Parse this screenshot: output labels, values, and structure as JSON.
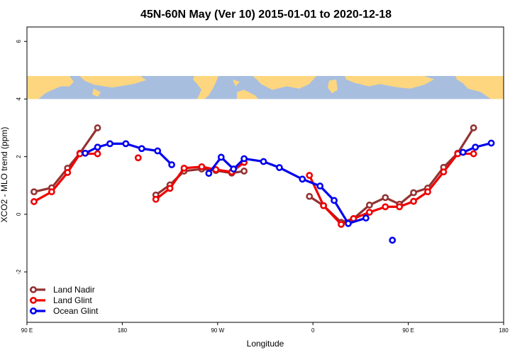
{
  "chart_data": {
    "type": "line",
    "title": "45N-60N May (Ver 10)   2015-01-01 to 2020-12-18",
    "xlabel": "Longitude",
    "ylabel": "XCO2 - MLO trend (ppm)",
    "xlim": [
      -90,
      180
    ],
    "ylim": [
      -3.75,
      6.5
    ],
    "x_ticks": [
      {
        "value": -90,
        "label": "90 E"
      },
      {
        "value": -36,
        "label": "180"
      },
      {
        "value": 18,
        "label": "90 W"
      },
      {
        "value": 72,
        "label": "0"
      },
      {
        "value": 126,
        "label": "90 E"
      },
      {
        "value": 180,
        "label": "180"
      }
    ],
    "y_ticks": [
      {
        "value": -2,
        "label": "-2"
      },
      {
        "value": 0,
        "label": "0"
      },
      {
        "value": 2,
        "label": "2"
      },
      {
        "value": 4,
        "label": "4"
      },
      {
        "value": 6,
        "label": "6"
      }
    ],
    "map_band": {
      "y_range": [
        4.0,
        4.8
      ],
      "ocean_color": "#a8bedf",
      "land_color": "#fdd67f"
    },
    "legend_position": "bottom-left",
    "series": [
      {
        "name": "Land Nadir",
        "color": "#943232",
        "segments": [
          [
            [
              -86,
              0.78
            ],
            [
              -76,
              0.92
            ],
            [
              -67,
              1.6
            ],
            [
              -60,
              2.12
            ],
            [
              -50,
              3.0
            ]
          ],
          [
            [
              -17,
              0.67
            ],
            [
              -9,
              1.02
            ],
            [
              -1,
              1.5
            ],
            [
              9,
              1.57
            ],
            [
              17,
              1.52
            ],
            [
              26,
              1.43
            ],
            [
              33,
              1.5
            ]
          ],
          [
            [
              70,
              0.62
            ],
            [
              78,
              0.3
            ],
            [
              88,
              -0.28
            ],
            [
              95,
              -0.15
            ],
            [
              104,
              0.32
            ],
            [
              113,
              0.58
            ],
            [
              121,
              0.35
            ],
            [
              129,
              0.75
            ],
            [
              137,
              0.91
            ],
            [
              146,
              1.63
            ],
            [
              154,
              2.12
            ],
            [
              163,
              3.0
            ]
          ]
        ]
      },
      {
        "name": "Land Glint",
        "color": "#f00000",
        "segments": [
          [
            [
              -86,
              0.44
            ],
            [
              -76,
              0.78
            ],
            [
              -67,
              1.45
            ],
            [
              -60,
              2.1
            ],
            [
              -50,
              2.1
            ]
          ],
          [
            [
              -27,
              1.96
            ]
          ],
          [
            [
              -17,
              0.52
            ],
            [
              -9,
              0.9
            ],
            [
              -1,
              1.6
            ],
            [
              9,
              1.65
            ],
            [
              17,
              1.55
            ],
            [
              26,
              1.47
            ],
            [
              33,
              1.8
            ]
          ],
          [
            [
              70,
              1.35
            ],
            [
              78,
              0.3
            ],
            [
              88,
              -0.35
            ],
            [
              95,
              -0.15
            ],
            [
              104,
              0.07
            ],
            [
              113,
              0.26
            ],
            [
              121,
              0.26
            ],
            [
              129,
              0.45
            ],
            [
              137,
              0.78
            ],
            [
              146,
              1.47
            ],
            [
              154,
              2.1
            ],
            [
              163,
              2.1
            ]
          ]
        ]
      },
      {
        "name": "Ocean Glint",
        "color": "#0000f0",
        "segments": [
          [
            [
              -57,
              2.12
            ],
            [
              -50,
              2.33
            ],
            [
              -43,
              2.45
            ],
            [
              -34,
              2.45
            ],
            [
              -25,
              2.28
            ],
            [
              -16,
              2.2
            ],
            [
              -8,
              1.72
            ]
          ],
          [
            [
              13,
              1.42
            ],
            [
              20,
              1.98
            ],
            [
              27,
              1.57
            ],
            [
              33,
              1.93
            ],
            [
              44,
              1.83
            ],
            [
              53,
              1.62
            ],
            [
              66,
              1.22
            ],
            [
              76,
              0.98
            ],
            [
              84,
              0.48
            ],
            [
              92,
              -0.32
            ],
            [
              102,
              -0.13
            ]
          ],
          [
            [
              117,
              -0.9
            ]
          ],
          [
            [
              157,
              2.15
            ],
            [
              164,
              2.33
            ],
            [
              173,
              2.47
            ]
          ]
        ]
      }
    ]
  }
}
